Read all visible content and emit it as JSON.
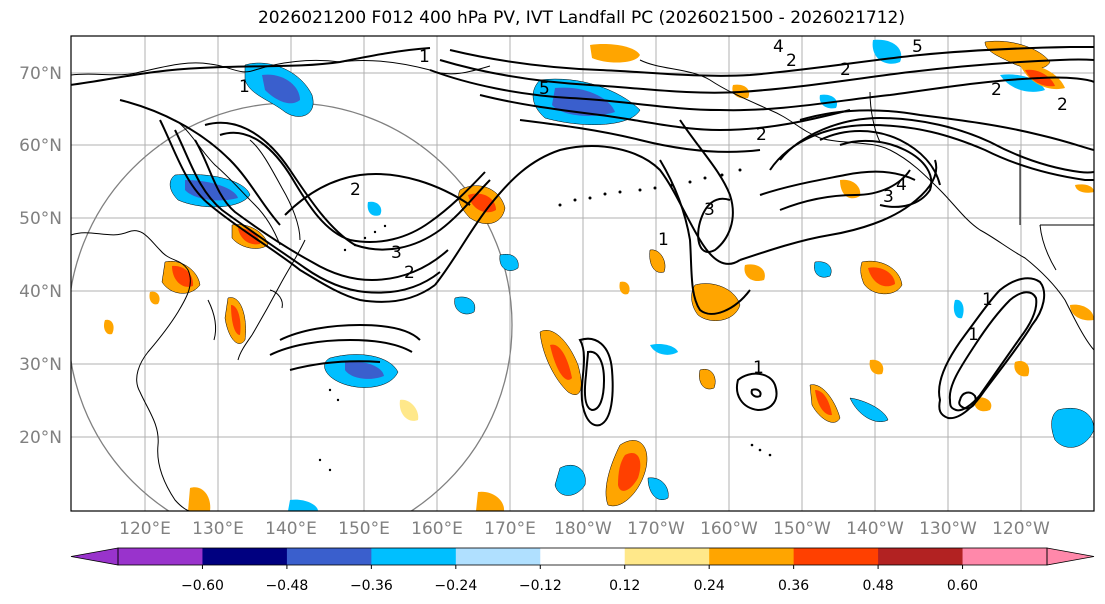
{
  "title": "2026021200 F012 400 hPa PV, IVT Landfall PC (2026021500 - 2026021712)",
  "lat_labels": [
    "70°N",
    "60°N",
    "50°N",
    "40°N",
    "30°N",
    "20°N"
  ],
  "lon_labels": [
    "120°E",
    "130°E",
    "140°E",
    "150°E",
    "160°E",
    "170°E",
    "180°W",
    "170°W",
    "160°W",
    "150°W",
    "140°W",
    "130°W",
    "120°W"
  ],
  "contour_labels": [
    "1",
    "1",
    "2",
    "3",
    "4",
    "5",
    "2",
    "5",
    "2",
    "2",
    "2",
    "3",
    "4",
    "2",
    "3",
    "2",
    "1",
    "1",
    "1",
    "1"
  ],
  "colorbar": {
    "ticks": [
      "−0.60",
      "−0.48",
      "−0.36",
      "−0.24",
      "−0.12",
      "0.12",
      "0.24",
      "0.36",
      "0.48",
      "0.60"
    ],
    "colors": [
      "#9933cc",
      "#000080",
      "#3a5fcd",
      "#00bfff",
      "#b0e0ff",
      "#ffffff",
      "#ffe88a",
      "#ffa500",
      "#ff4000",
      "#b22222",
      "#ff88aa"
    ]
  }
}
